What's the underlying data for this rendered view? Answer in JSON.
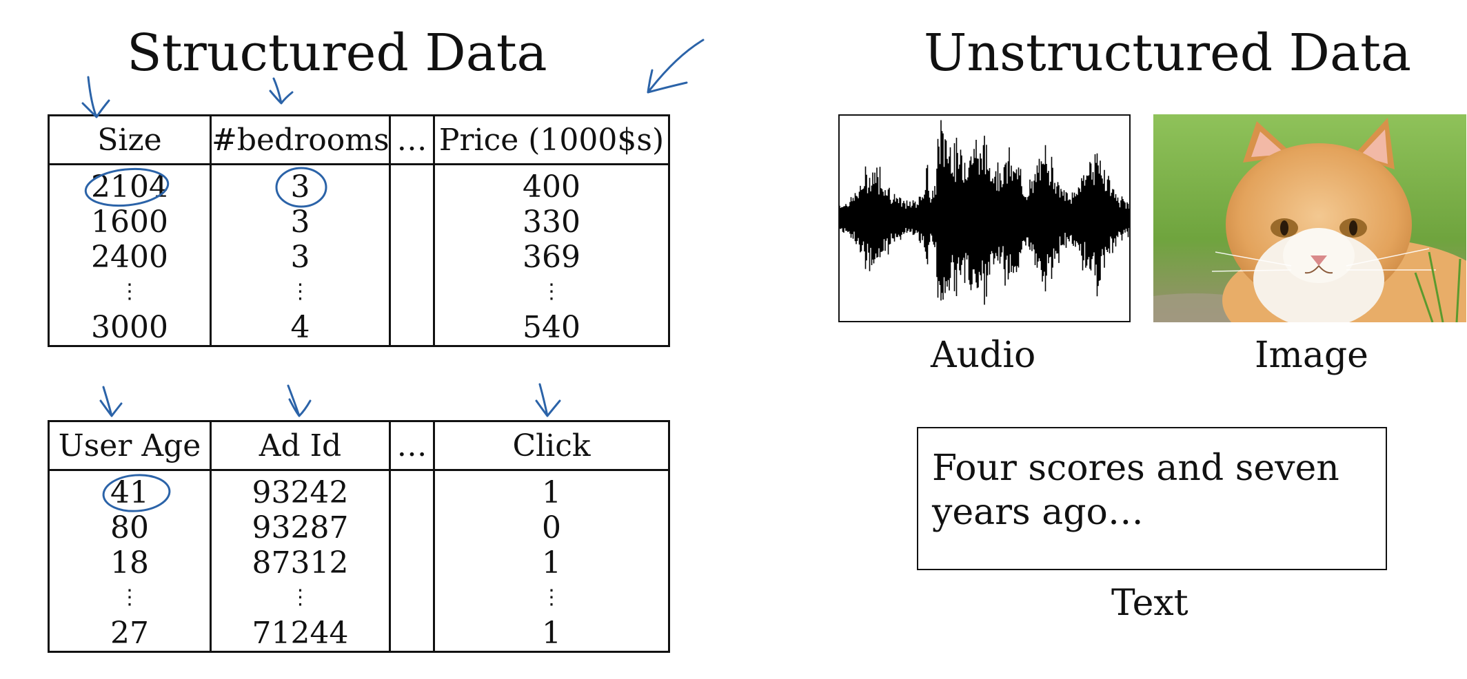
{
  "structured": {
    "title": "Structured Data",
    "housing": {
      "headers": [
        "Size",
        "#bedrooms",
        "…",
        "Price (1000$s)"
      ],
      "rows": [
        [
          "2104",
          "3",
          "",
          "400"
        ],
        [
          "1600",
          "3",
          "",
          "330"
        ],
        [
          "2400",
          "3",
          "",
          "369"
        ],
        [
          "⋮",
          "⋮",
          "",
          "⋮"
        ],
        [
          "3000",
          "4",
          "",
          "540"
        ]
      ]
    },
    "ads": {
      "headers": [
        "User Age",
        "Ad Id",
        "…",
        "Click"
      ],
      "rows": [
        [
          "41",
          "93242",
          "",
          "1"
        ],
        [
          "80",
          "93287",
          "",
          "0"
        ],
        [
          "18",
          "87312",
          "",
          "1"
        ],
        [
          "⋮",
          "⋮",
          "",
          "⋮"
        ],
        [
          "27",
          "71244",
          "",
          "1"
        ]
      ]
    }
  },
  "unstructured": {
    "title": "Unstructured Data",
    "audio": {
      "caption": "Audio",
      "icon": "audio-waveform"
    },
    "image": {
      "caption": "Image",
      "icon": "cat-photo"
    },
    "text": {
      "caption": "Text",
      "content_line1": "Four scores and seven",
      "content_line2": "years ago…"
    }
  },
  "annotation_color": "#2b63a8"
}
